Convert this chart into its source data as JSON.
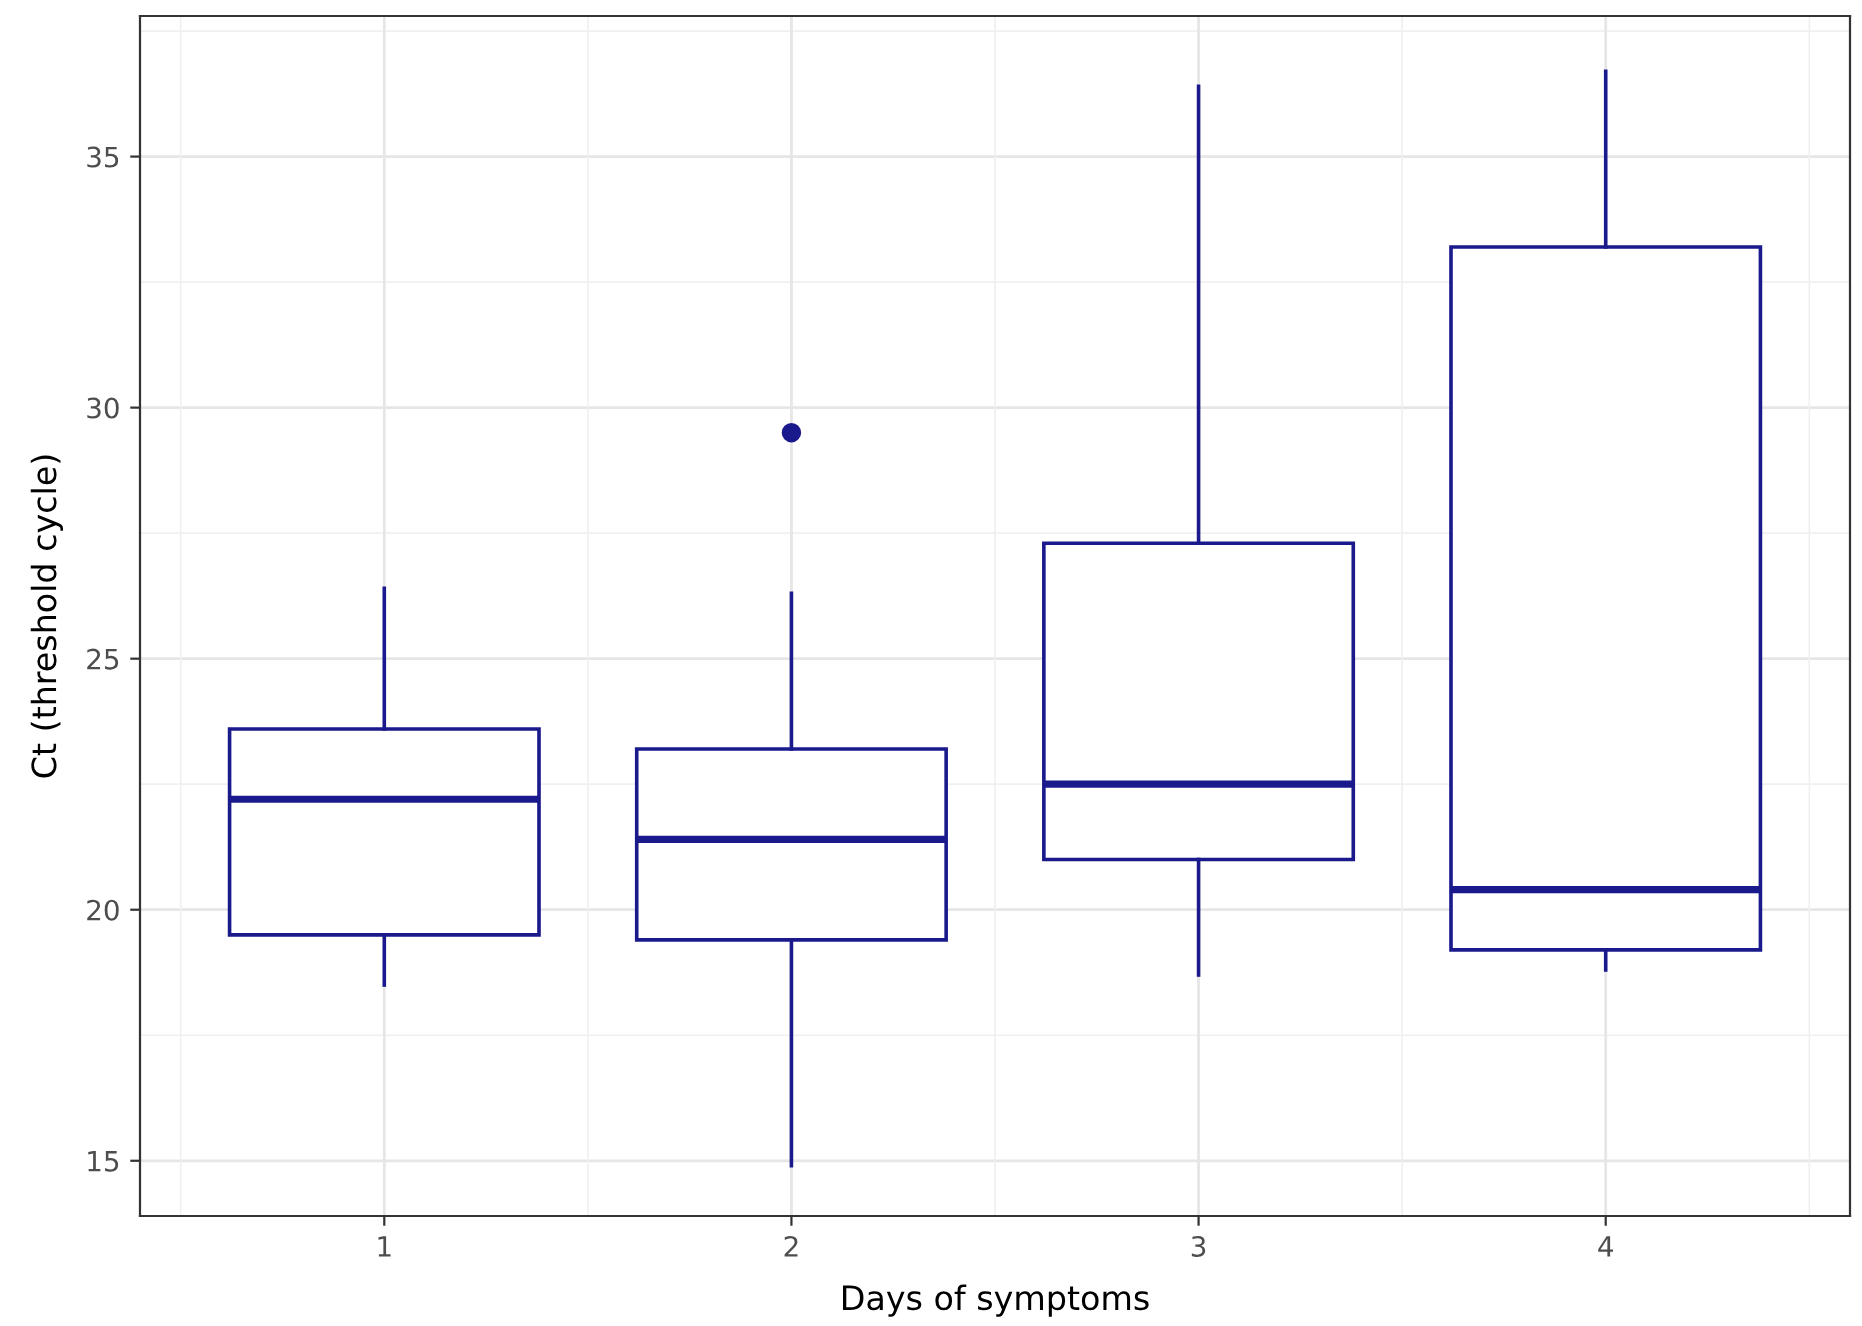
{
  "chart_data": {
    "type": "box",
    "xlabel": "Days of symptoms",
    "ylabel": "Ct (threshold cycle)",
    "categories": [
      "1",
      "2",
      "3",
      "4"
    ],
    "color": "#1a1a8c",
    "boxes": [
      {
        "low": 18.5,
        "q1": 19.5,
        "median": 22.2,
        "q3": 23.6,
        "high": 26.4
      },
      {
        "low": 14.9,
        "q1": 19.4,
        "median": 21.4,
        "q3": 23.2,
        "high": 26.3,
        "outliers": [
          29.5
        ]
      },
      {
        "low": 18.7,
        "q1": 21.0,
        "median": 22.5,
        "q3": 27.3,
        "high": 36.4
      },
      {
        "low": 18.8,
        "q1": 19.2,
        "median": 20.4,
        "q3": 33.2,
        "high": 36.7
      }
    ],
    "ylim": [
      13.9,
      37.8
    ],
    "yticks": [
      15,
      20,
      25,
      30,
      35
    ],
    "grid": true
  }
}
